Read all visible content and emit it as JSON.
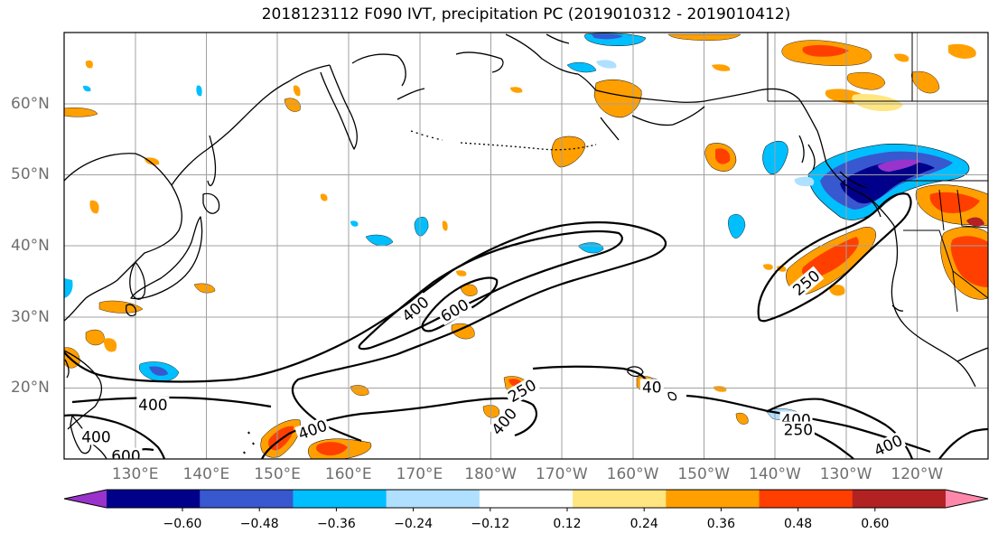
{
  "title": "2018123112 F090 IVT, precipitation PC (2019010312 - 2019010412)",
  "map": {
    "lat_labels": [
      "60°N",
      "50°N",
      "40°N",
      "30°N",
      "20°N"
    ],
    "lon_labels": [
      "130°E",
      "140°E",
      "150°E",
      "160°E",
      "170°E",
      "180°W",
      "170°W",
      "160°W",
      "150°W",
      "140°W",
      "130°W",
      "120°W"
    ],
    "lon_range": [
      120,
      250
    ],
    "lat_range": [
      10,
      70
    ],
    "grid": true,
    "contour_labels": [
      {
        "text": "400",
        "lon": 132.5,
        "lat": 17.5,
        "rot": 0
      },
      {
        "text": "600",
        "lon": 128.7,
        "lat": 10.3,
        "rot": 0
      },
      {
        "text": "400",
        "lon": 124.5,
        "lat": 13.0,
        "rot": 0
      },
      {
        "text": "400",
        "lon": 155.0,
        "lat": 14.0,
        "rot": -20
      },
      {
        "text": "400",
        "lon": 169.5,
        "lat": 31.0,
        "rot": -40
      },
      {
        "text": "600",
        "lon": 175.0,
        "lat": 30.8,
        "rot": -30
      },
      {
        "text": "400",
        "lon": 182.0,
        "lat": 15.2,
        "rot": -50
      },
      {
        "text": "250",
        "lon": 184.5,
        "lat": 19.5,
        "rot": -30
      },
      {
        "text": "40",
        "lon": 202.7,
        "lat": 20.0,
        "rot": 0
      },
      {
        "text": "400",
        "lon": 223.0,
        "lat": 15.4,
        "rot": 0
      },
      {
        "text": "250",
        "lon": 223.3,
        "lat": 14.0,
        "rot": 0
      },
      {
        "text": "400",
        "lon": 236.0,
        "lat": 11.8,
        "rot": -25
      },
      {
        "text": "250",
        "lon": 224.5,
        "lat": 34.7,
        "rot": -40
      }
    ]
  },
  "colorbar": {
    "levels": [
      "-0.60",
      "−0.48",
      "−0.36",
      "−0.24",
      "−0.12",
      "0.12",
      "0.24",
      "0.36",
      "0.48",
      "0.60"
    ],
    "tick_labels": [
      "−0.60",
      "−0.48",
      "−0.36",
      "−0.24",
      "−0.12",
      "0.12",
      "0.24",
      "0.36",
      "0.48",
      "0.60"
    ],
    "colors": [
      "#9933cc",
      "#00008b",
      "#3858cf",
      "#00bfff",
      "#b0e0ff",
      "#ffffff",
      "#ffe680",
      "#ffa000",
      "#ff3f00",
      "#b22222",
      "#ff88aa"
    ]
  }
}
